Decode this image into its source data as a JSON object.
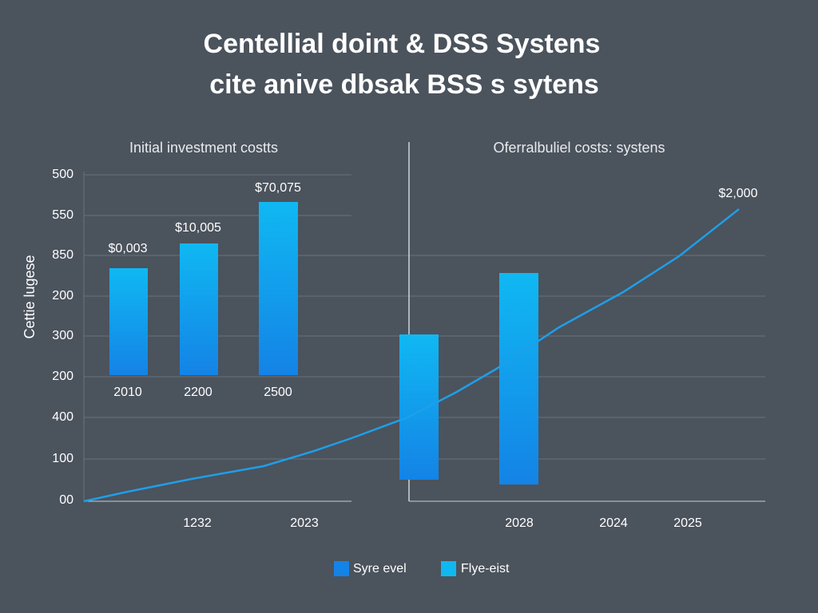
{
  "header": {
    "title_line1": "Centellial doint & DSS Systens",
    "title_line2": "cite anive dbsak BSS s sytens"
  },
  "left_panel": {
    "subtitle": "Initial investment costts",
    "y_axis_title": "Cettie lugese",
    "y_labels": [
      "500",
      "550",
      "850",
      "200",
      "300",
      "200",
      "400",
      "100",
      "00"
    ],
    "bar_labels": [
      "$0,003",
      "$10,005",
      "$70,075"
    ],
    "bar_categories": [
      "2010",
      "2200",
      "2500"
    ],
    "x_labels": [
      "1232",
      "2023"
    ]
  },
  "right_panel": {
    "subtitle": "Oferrаlbuliel costs: systens",
    "line_label": "$2,000",
    "x_labels": [
      "2028",
      "2024",
      "2025"
    ]
  },
  "legend": [
    "Syre evel",
    "Flye-eist"
  ]
}
